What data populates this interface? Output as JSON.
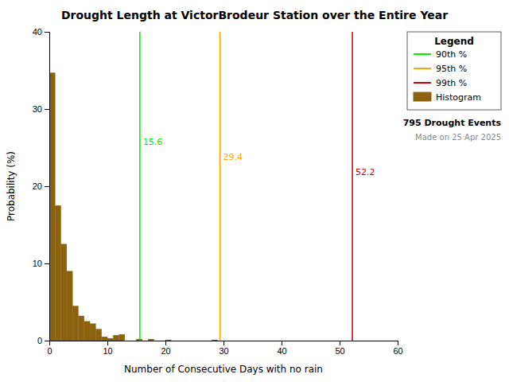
{
  "chart_data": {
    "type": "histogram",
    "title": "Drought Length at VictorBrodeur Station over the Entire Year",
    "xlabel": "Number of Consecutive Days with no rain",
    "ylabel": "Probability (%)",
    "name": "Histogram",
    "color": "#8B6310",
    "bins": [
      0,
      1,
      2,
      3,
      4,
      5,
      6,
      7,
      8,
      9,
      10,
      11,
      12,
      13,
      14,
      15,
      16,
      17,
      18,
      19,
      20,
      21,
      22,
      23,
      24,
      25,
      26,
      27,
      28,
      29,
      30,
      31,
      32,
      33,
      34,
      35,
      36,
      37,
      38,
      39,
      40,
      41,
      42,
      43,
      44,
      45,
      46,
      47,
      48,
      49,
      50,
      51,
      52,
      53,
      54,
      55,
      56,
      57,
      58,
      59,
      60
    ],
    "values": [
      34.7,
      17.5,
      12.5,
      9.0,
      4.5,
      3.2,
      2.5,
      2.2,
      1.5,
      0.5,
      0.3,
      0.7,
      0.8,
      0.0,
      0.0,
      0.2,
      0.0,
      0.2,
      0.0,
      0.0,
      0.1,
      0.0,
      0.0,
      0.0,
      0.0,
      0.0,
      0.0,
      0.0,
      0.1,
      0.0,
      0.0,
      0.0,
      0.0,
      0.0,
      0.0,
      0.0,
      0.0,
      0.0,
      0.0,
      0.0,
      0.0,
      0.0,
      0.0,
      0.0,
      0.0,
      0.0,
      0.0,
      0.0,
      0.0,
      0.0,
      0.0,
      0.0,
      0.0,
      0.0,
      0.0,
      0.0,
      0.0,
      0.0,
      0.0,
      0.0
    ],
    "vlines": [
      {
        "name": "90th %",
        "x": 15.6,
        "color": "#00EE00"
      },
      {
        "name": "95th %",
        "x": 29.4,
        "color": "#FFA500"
      },
      {
        "name": "99th %",
        "x": 52.2,
        "color": "#CC0000"
      }
    ],
    "xlim": [
      0,
      60
    ],
    "ylim": [
      0,
      40
    ],
    "xticks": [
      0,
      10,
      20,
      30,
      40,
      50,
      60
    ],
    "yticks": [
      0,
      10,
      20,
      30,
      40
    ],
    "grid": false,
    "legend": "upper right",
    "legend_title": "Legend",
    "annotations": [
      "795 Drought Events",
      "Made on 25 Apr 2025"
    ]
  }
}
